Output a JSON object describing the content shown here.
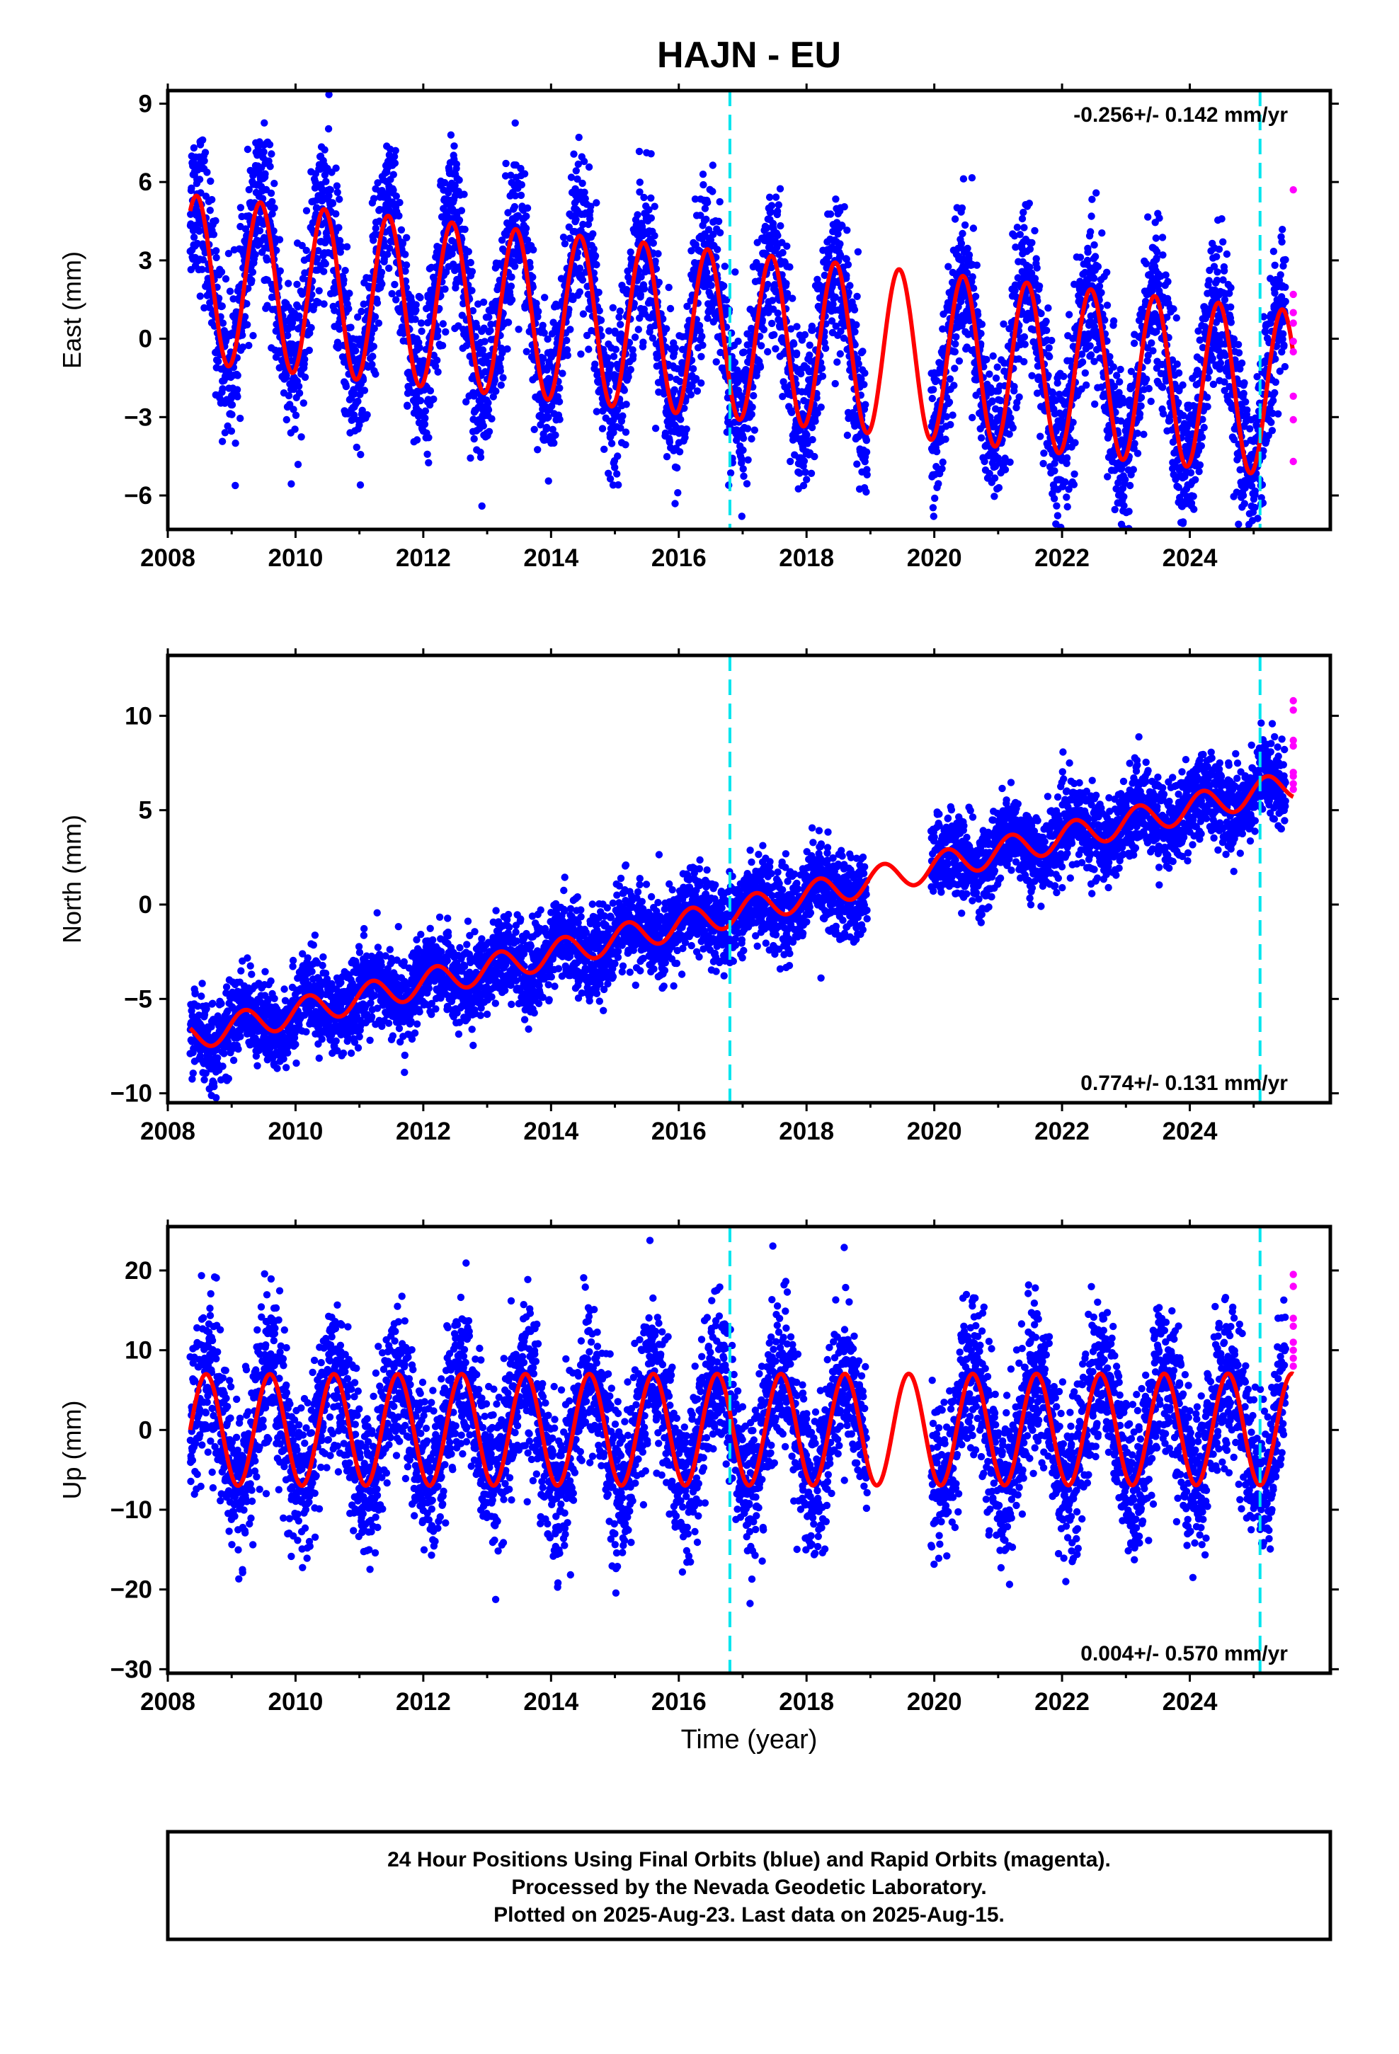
{
  "title": "HAJN - EU",
  "xlabel": "Time (year)",
  "footer": {
    "line1": "24 Hour Positions Using Final Orbits (blue) and Rapid Orbits (magenta).",
    "line2": "Processed by the Nevada Geodetic Laboratory.",
    "line3": "Plotted on 2025-Aug-23. Last data on 2025-Aug-15."
  },
  "colors": {
    "final_orbits": "#0000ff",
    "rapid_orbits": "#ff00ff",
    "model_fit": "#ff0000",
    "equipment_change": "#00e5ee",
    "frame": "#000000"
  },
  "chart_data": [
    {
      "type": "scatter",
      "component": "east",
      "ylabel": "East (mm)",
      "rate_label": "-0.256+/- 0.142 mm/yr",
      "rate_position": "top-right",
      "xlim": [
        2008.0,
        2026.2
      ],
      "ylim": [
        -7.3,
        9.5
      ],
      "xticks": [
        2008,
        2010,
        2012,
        2014,
        2016,
        2018,
        2020,
        2022,
        2024
      ],
      "yticks": [
        -6,
        -3,
        0,
        3,
        6,
        9
      ],
      "grid": false,
      "data_start": 2008.35,
      "data_end": 2025.62,
      "data_gap": [
        2018.95,
        2019.95
      ],
      "rapid_start": 2025.5,
      "step_lines_x": [
        2016.8,
        2025.1
      ],
      "model": {
        "offset_at_start": 2.3,
        "rate_mm_per_yr": -0.256,
        "annual_amplitude": 3.2,
        "annual_peak_month_fraction": 0.45,
        "amplitude_growth_per_yr": 0.0
      },
      "series": [
        {
          "name": "Final Orbits (blue)",
          "color": "#0000ff",
          "scatter_sd": 1.5,
          "points_per_year": 330
        },
        {
          "name": "Rapid Orbits (magenta)",
          "color": "#ff00ff",
          "values": [
            5.7,
            1.7,
            1.0,
            0.6,
            -0.1,
            -0.5,
            -2.2,
            -3.1,
            -4.7
          ]
        }
      ]
    },
    {
      "type": "scatter",
      "component": "north",
      "ylabel": "North (mm)",
      "rate_label": "0.774+/- 0.131 mm/yr",
      "rate_position": "bottom-right",
      "xlim": [
        2008.0,
        2026.2
      ],
      "ylim": [
        -10.5,
        13.2
      ],
      "xticks": [
        2008,
        2010,
        2012,
        2014,
        2016,
        2018,
        2020,
        2022,
        2024
      ],
      "yticks": [
        -10,
        -5,
        0,
        5,
        10
      ],
      "grid": false,
      "data_start": 2008.35,
      "data_end": 2025.62,
      "data_gap": [
        2018.95,
        2019.95
      ],
      "rapid_start": 2025.5,
      "step_lines_x": [
        2016.8,
        2025.1
      ],
      "model": {
        "offset_at_start": -7.0,
        "rate_mm_per_yr": 0.774,
        "annual_amplitude": 0.75,
        "annual_peak_month_fraction": 0.2,
        "amplitude_growth_per_yr": 0.0
      },
      "series": [
        {
          "name": "Final Orbits (blue)",
          "color": "#0000ff",
          "scatter_sd": 1.1,
          "points_per_year": 330
        },
        {
          "name": "Rapid Orbits (magenta)",
          "color": "#ff00ff",
          "values": [
            10.8,
            10.3,
            8.7,
            8.4,
            7.0,
            6.8,
            6.4,
            6.1
          ]
        }
      ]
    },
    {
      "type": "scatter",
      "component": "up",
      "ylabel": "Up (mm)",
      "rate_label": "0.004+/- 0.570 mm/yr",
      "rate_position": "bottom-right",
      "xlim": [
        2008.0,
        2026.2
      ],
      "ylim": [
        -30.5,
        25.5
      ],
      "xticks": [
        2008,
        2010,
        2012,
        2014,
        2016,
        2018,
        2020,
        2022,
        2024
      ],
      "yticks": [
        -30,
        -20,
        -10,
        0,
        10,
        20
      ],
      "grid": false,
      "data_start": 2008.35,
      "data_end": 2025.62,
      "data_gap": [
        2018.95,
        2019.95
      ],
      "rapid_start": 2025.5,
      "step_lines_x": [
        2016.8,
        2025.1
      ],
      "model": {
        "offset_at_start": 0.0,
        "rate_mm_per_yr": 0.004,
        "annual_amplitude": 7.0,
        "annual_peak_month_fraction": 0.6,
        "amplitude_growth_per_yr": 0.0
      },
      "series": [
        {
          "name": "Final Orbits (blue)",
          "color": "#0000ff",
          "scatter_sd": 4.8,
          "points_per_year": 330
        },
        {
          "name": "Rapid Orbits (magenta)",
          "color": "#ff00ff",
          "values": [
            19.5,
            18.0,
            14.0,
            13.0,
            11.0,
            10.0,
            9.0,
            8.0
          ]
        }
      ]
    }
  ]
}
